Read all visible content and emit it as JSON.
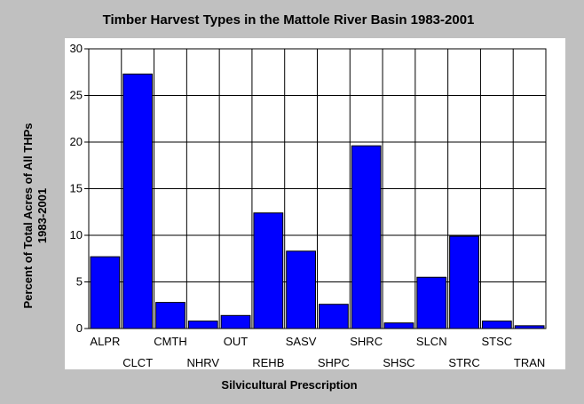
{
  "chart_data": {
    "type": "bar",
    "title": "Timber Harvest Types in the Mattole River Basin 1983-2001",
    "xlabel": "Silvicultural Prescription",
    "ylabel_line1": "Percent of Total Acres of All THPs",
    "ylabel_line2": "1983-2001",
    "categories": [
      "ALPR",
      "CLCT",
      "CMTH",
      "NHRV",
      "OUT",
      "REHB",
      "SASV",
      "SHPC",
      "SHRC",
      "SHSC",
      "SLCN",
      "STRC",
      "STSC",
      "TRAN"
    ],
    "values": [
      7.7,
      27.3,
      2.8,
      0.8,
      1.4,
      12.4,
      8.3,
      2.6,
      19.6,
      0.6,
      5.5,
      9.9,
      0.8,
      0.3
    ],
    "ylim": [
      0,
      30
    ],
    "yticks": [
      0,
      5,
      10,
      15,
      20,
      25,
      30
    ],
    "grid": true,
    "colors": {
      "bar": "#0000ff",
      "plot_bg": "#ffffff",
      "page_bg": "#c0c0c0"
    }
  }
}
